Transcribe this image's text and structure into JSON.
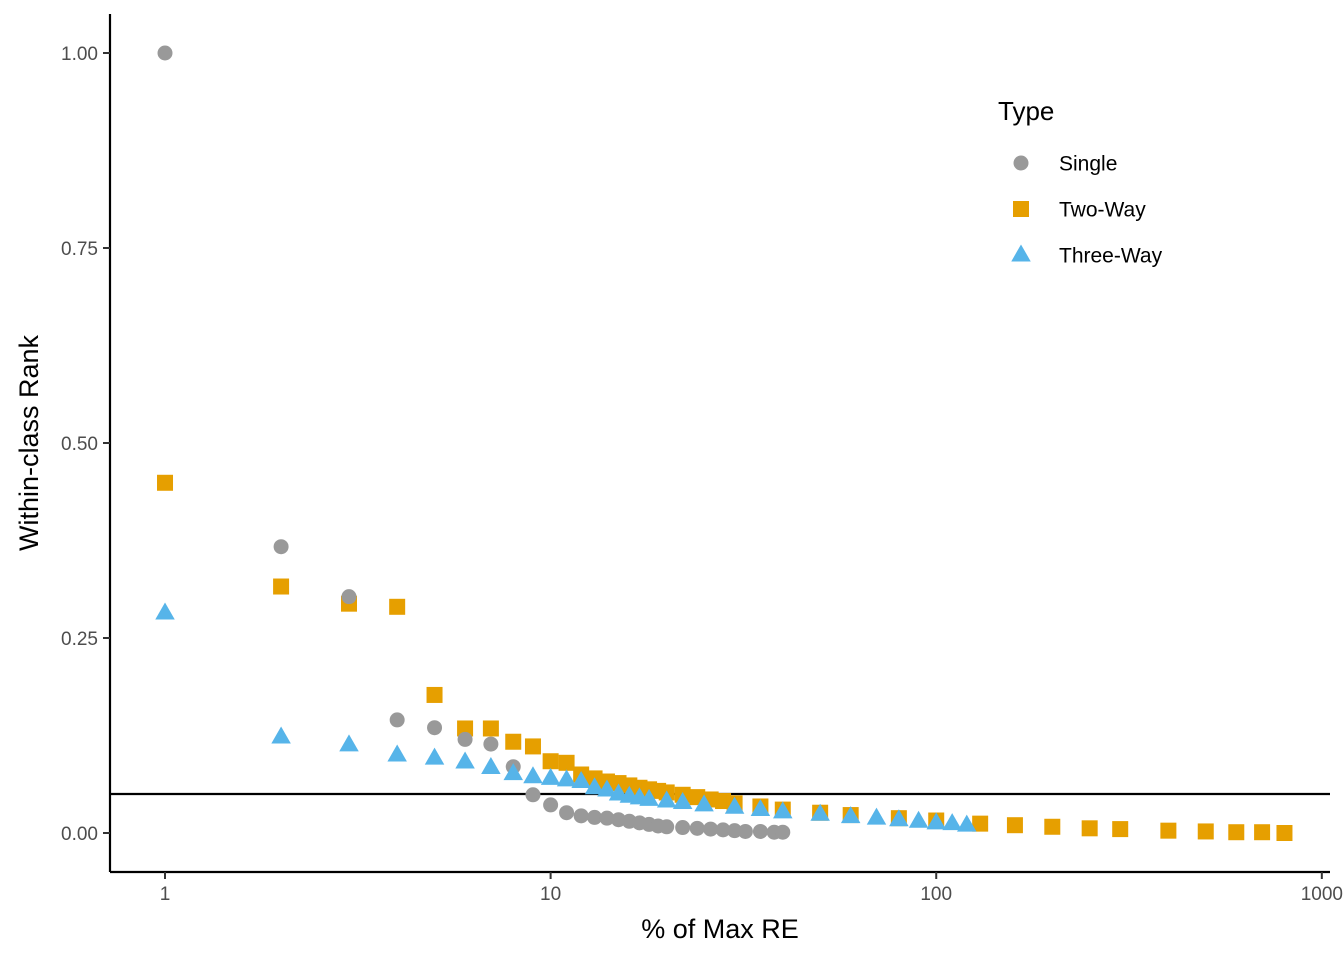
{
  "chart_data": {
    "type": "scatter",
    "title": "",
    "xlabel": "% of Max RE",
    "ylabel": "Within-class Rank",
    "x_scale": "log10",
    "x_ticks": [
      1,
      10,
      100,
      1000
    ],
    "x_tick_labels": [
      "1",
      "10",
      "100",
      "1000"
    ],
    "y_ticks": [
      0,
      0.25,
      0.5,
      0.75,
      1.0
    ],
    "y_tick_labels": [
      "0.00",
      "0.25",
      "0.50",
      "0.75",
      "1.00"
    ],
    "xlim": [
      0.72,
      1050
    ],
    "ylim": [
      -0.05,
      1.05
    ],
    "grid": false,
    "reference_line": {
      "orientation": "horizontal",
      "y": 0.05
    },
    "legend": {
      "title": "Type",
      "position": "top-right"
    },
    "series": [
      {
        "name": "Single",
        "marker": "circle",
        "color": "#999999",
        "points": [
          [
            1,
            1.0
          ],
          [
            2,
            0.367
          ],
          [
            3,
            0.303
          ],
          [
            4,
            0.145
          ],
          [
            5,
            0.135
          ],
          [
            6,
            0.12
          ],
          [
            7,
            0.114
          ],
          [
            8,
            0.085
          ],
          [
            9,
            0.049
          ],
          [
            10,
            0.036
          ],
          [
            11,
            0.026
          ],
          [
            12,
            0.022
          ],
          [
            13,
            0.02
          ],
          [
            14,
            0.019
          ],
          [
            15,
            0.017
          ],
          [
            16,
            0.015
          ],
          [
            17,
            0.013
          ],
          [
            18,
            0.011
          ],
          [
            19,
            0.009
          ],
          [
            20,
            0.008
          ],
          [
            22,
            0.007
          ],
          [
            24,
            0.006
          ],
          [
            26,
            0.005
          ],
          [
            28,
            0.004
          ],
          [
            30,
            0.003
          ],
          [
            32,
            0.002
          ],
          [
            35,
            0.002
          ],
          [
            38,
            0.001
          ],
          [
            40,
            0.001
          ]
        ]
      },
      {
        "name": "Two-Way",
        "marker": "square",
        "color": "#E69F00",
        "points": [
          [
            1,
            0.449
          ],
          [
            2,
            0.316
          ],
          [
            3,
            0.294
          ],
          [
            4,
            0.29
          ],
          [
            5,
            0.177
          ],
          [
            6,
            0.134
          ],
          [
            7,
            0.134
          ],
          [
            8,
            0.117
          ],
          [
            9,
            0.111
          ],
          [
            10,
            0.092
          ],
          [
            11,
            0.09
          ],
          [
            12,
            0.075
          ],
          [
            13,
            0.07
          ],
          [
            14,
            0.066
          ],
          [
            15,
            0.064
          ],
          [
            16,
            0.061
          ],
          [
            17,
            0.058
          ],
          [
            18,
            0.056
          ],
          [
            19,
            0.054
          ],
          [
            20,
            0.052
          ],
          [
            22,
            0.049
          ],
          [
            24,
            0.046
          ],
          [
            26,
            0.043
          ],
          [
            28,
            0.041
          ],
          [
            30,
            0.038
          ],
          [
            35,
            0.034
          ],
          [
            40,
            0.03
          ],
          [
            50,
            0.026
          ],
          [
            60,
            0.023
          ],
          [
            80,
            0.019
          ],
          [
            100,
            0.016
          ],
          [
            130,
            0.012
          ],
          [
            160,
            0.01
          ],
          [
            200,
            0.008
          ],
          [
            250,
            0.006
          ],
          [
            300,
            0.005
          ],
          [
            400,
            0.003
          ],
          [
            500,
            0.002
          ],
          [
            600,
            0.001
          ],
          [
            700,
            0.001
          ],
          [
            800,
            0.0
          ]
        ]
      },
      {
        "name": "Three-Way",
        "marker": "triangle",
        "color": "#56B4E9",
        "points": [
          [
            1,
            0.282
          ],
          [
            2,
            0.123
          ],
          [
            3,
            0.113
          ],
          [
            4,
            0.1
          ],
          [
            5,
            0.096
          ],
          [
            6,
            0.091
          ],
          [
            7,
            0.084
          ],
          [
            8,
            0.076
          ],
          [
            9,
            0.072
          ],
          [
            10,
            0.07
          ],
          [
            11,
            0.068
          ],
          [
            12,
            0.066
          ],
          [
            13,
            0.058
          ],
          [
            14,
            0.055
          ],
          [
            15,
            0.05
          ],
          [
            16,
            0.047
          ],
          [
            17,
            0.045
          ],
          [
            18,
            0.043
          ],
          [
            20,
            0.041
          ],
          [
            22,
            0.039
          ],
          [
            25,
            0.036
          ],
          [
            30,
            0.033
          ],
          [
            35,
            0.03
          ],
          [
            40,
            0.027
          ],
          [
            50,
            0.024
          ],
          [
            60,
            0.021
          ],
          [
            70,
            0.019
          ],
          [
            80,
            0.017
          ],
          [
            90,
            0.015
          ],
          [
            100,
            0.013
          ],
          [
            110,
            0.012
          ],
          [
            120,
            0.01
          ]
        ]
      }
    ]
  }
}
